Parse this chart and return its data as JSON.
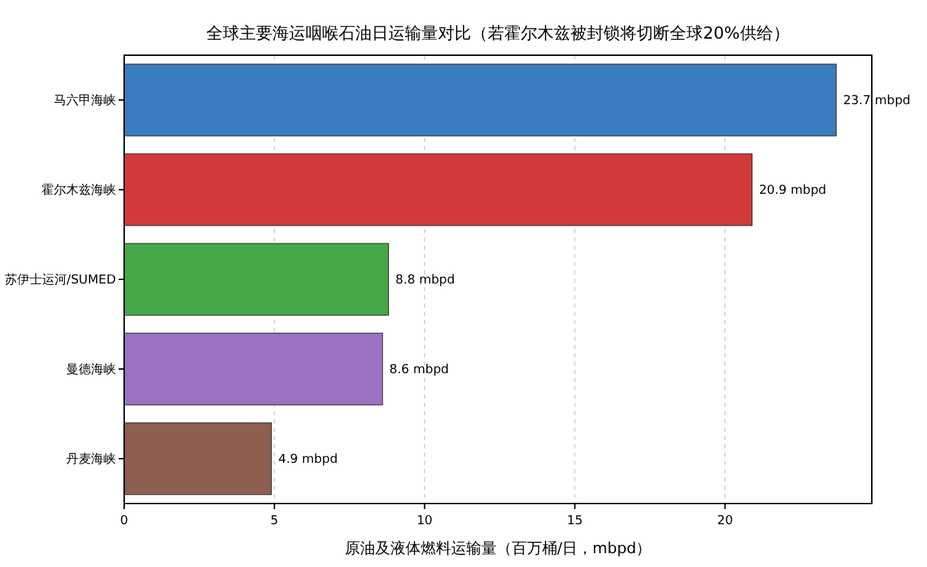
{
  "chart_data": {
    "type": "bar",
    "orientation": "horizontal",
    "title": "全球主要海运咽喉石油日运输量对比（若霍尔木兹被封锁将切断全球20%供给）",
    "xlabel": "原油及液体燃料运输量（百万桶/日，mbpd）",
    "categories": [
      "马六甲海峡",
      "霍尔木兹海峡",
      "苏伊士运河/SUMED",
      "曼德海峡",
      "丹麦海峡"
    ],
    "values": [
      23.7,
      20.9,
      8.8,
      8.6,
      4.9
    ],
    "colors": [
      "#3a7dbf",
      "#d23a3a",
      "#47a847",
      "#9b72c2",
      "#8e5e50"
    ],
    "value_labels": [
      "23.7 mbpd",
      "20.9 mbpd",
      "8.8 mbpd",
      "8.6 mbpd",
      "4.9 mbpd"
    ],
    "xlim": [
      0,
      24.885
    ],
    "xticks": [
      0,
      5,
      10,
      15,
      20
    ],
    "grid": "x"
  }
}
